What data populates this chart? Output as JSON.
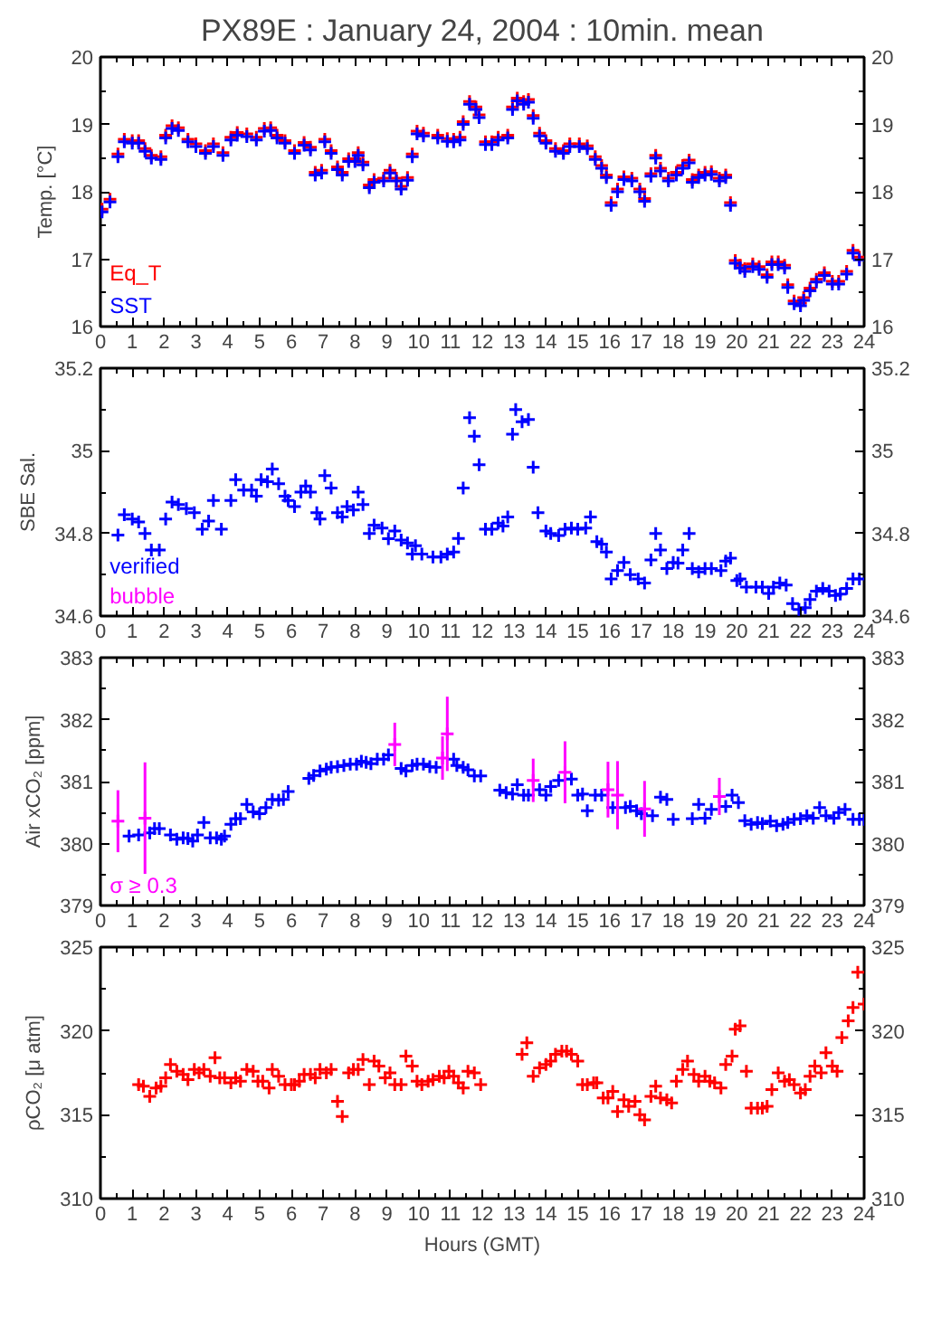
{
  "chart_data": [
    {
      "type": "scatter",
      "title": "PX89E : January 24, 2004 : 10min. mean",
      "ylabel": "Temp. [°C]",
      "marker": "cross",
      "legend": "bottom left",
      "xlim": [
        0,
        24
      ],
      "xticks": [
        0,
        1,
        2,
        3,
        4,
        5,
        6,
        7,
        8,
        9,
        10,
        11,
        12,
        13,
        14,
        15,
        16,
        17,
        18,
        19,
        20,
        21,
        22,
        23,
        24
      ],
      "ylim": [
        16,
        20
      ],
      "yticks": [
        16,
        17,
        18,
        19,
        20
      ],
      "y2lim": [
        16,
        20
      ],
      "y2ticks": [
        16,
        17,
        18,
        19,
        20
      ],
      "x": [
        0.05,
        0.3,
        0.55,
        0.75,
        1.0,
        1.2,
        1.4,
        1.6,
        1.9,
        2.05,
        2.25,
        2.45,
        2.75,
        3.0,
        3.3,
        3.55,
        3.85,
        4.1,
        4.3,
        4.6,
        4.9,
        5.15,
        5.35,
        5.55,
        5.8,
        6.1,
        6.4,
        6.6,
        6.75,
        6.95,
        7.05,
        7.25,
        7.45,
        7.6,
        7.8,
        8.0,
        8.1,
        8.25,
        8.45,
        8.6,
        8.9,
        9.1,
        9.3,
        9.45,
        9.65,
        9.8,
        9.95,
        10.15,
        10.6,
        10.9,
        11.1,
        11.3,
        11.4,
        11.6,
        11.8,
        11.9,
        12.1,
        12.3,
        12.5,
        12.8,
        12.95,
        13.1,
        13.3,
        13.45,
        13.6,
        13.8,
        14.0,
        14.3,
        14.55,
        14.75,
        15.05,
        15.3,
        15.55,
        15.75,
        15.9,
        16.05,
        16.25,
        16.45,
        16.7,
        16.95,
        17.1,
        17.3,
        17.45,
        17.6,
        17.85,
        18.1,
        18.3,
        18.5,
        18.6,
        18.8,
        19.0,
        19.2,
        19.45,
        19.65,
        19.8,
        19.95,
        20.1,
        20.25,
        20.5,
        20.7,
        20.95,
        21.1,
        21.3,
        21.5,
        21.6,
        21.8,
        22.0,
        22.1,
        22.3,
        22.5,
        22.75,
        23.0,
        23.2,
        23.45,
        23.65,
        23.85
      ],
      "series": [
        {
          "name": "Eq_T",
          "color": "#ff0000",
          "values": [
            17.74,
            17.89,
            18.56,
            18.78,
            18.76,
            18.76,
            18.64,
            18.54,
            18.52,
            18.84,
            18.98,
            18.95,
            18.78,
            18.71,
            18.61,
            18.71,
            18.58,
            18.81,
            18.88,
            18.86,
            18.81,
            18.94,
            18.95,
            18.84,
            18.76,
            18.61,
            18.73,
            18.66,
            18.29,
            18.32,
            18.78,
            18.61,
            18.37,
            18.29,
            18.49,
            18.49,
            18.58,
            18.44,
            18.1,
            18.18,
            18.2,
            18.32,
            18.2,
            18.08,
            18.21,
            18.56,
            18.9,
            18.87,
            18.84,
            18.79,
            18.78,
            18.81,
            19.04,
            19.34,
            19.26,
            19.14,
            18.74,
            18.74,
            18.81,
            18.84,
            19.26,
            19.39,
            19.34,
            19.37,
            19.13,
            18.87,
            18.76,
            18.64,
            18.61,
            18.71,
            18.71,
            18.68,
            18.52,
            18.39,
            18.25,
            17.84,
            18.04,
            18.22,
            18.2,
            18.04,
            17.9,
            18.27,
            18.54,
            18.35,
            18.2,
            18.29,
            18.39,
            18.47,
            18.18,
            18.25,
            18.29,
            18.3,
            18.2,
            18.25,
            17.84,
            16.98,
            16.91,
            16.86,
            16.93,
            16.89,
            16.77,
            16.96,
            16.96,
            16.91,
            16.62,
            16.38,
            16.35,
            16.43,
            16.57,
            16.7,
            16.8,
            16.67,
            16.67,
            16.82,
            17.13,
            17.03
          ]
        },
        {
          "name": "SST",
          "color": "#0000ff",
          "values": [
            17.7,
            17.85,
            18.52,
            18.74,
            18.72,
            18.72,
            18.6,
            18.5,
            18.48,
            18.8,
            18.94,
            18.91,
            18.74,
            18.67,
            18.57,
            18.67,
            18.54,
            18.77,
            18.84,
            18.82,
            18.77,
            18.9,
            18.91,
            18.8,
            18.72,
            18.57,
            18.69,
            18.62,
            18.25,
            18.28,
            18.74,
            18.57,
            18.33,
            18.25,
            18.45,
            18.45,
            18.54,
            18.4,
            18.06,
            18.14,
            18.16,
            18.28,
            18.16,
            18.04,
            18.17,
            18.52,
            18.86,
            18.83,
            18.8,
            18.75,
            18.74,
            18.77,
            19.0,
            19.3,
            19.22,
            19.1,
            18.7,
            18.7,
            18.77,
            18.8,
            19.22,
            19.35,
            19.3,
            19.33,
            19.09,
            18.83,
            18.72,
            18.6,
            18.57,
            18.67,
            18.67,
            18.64,
            18.48,
            18.35,
            18.21,
            17.8,
            18.0,
            18.18,
            18.16,
            18.0,
            17.86,
            18.23,
            18.5,
            18.31,
            18.16,
            18.25,
            18.35,
            18.43,
            18.14,
            18.21,
            18.25,
            18.26,
            18.16,
            18.21,
            17.8,
            16.94,
            16.87,
            16.82,
            16.89,
            16.85,
            16.73,
            16.92,
            16.92,
            16.87,
            16.58,
            16.34,
            16.31,
            16.39,
            16.53,
            16.66,
            16.76,
            16.63,
            16.63,
            16.78,
            17.09,
            16.99
          ]
        }
      ]
    },
    {
      "type": "scatter",
      "ylabel": "SBE Sal.",
      "marker": "cross",
      "legend": "bottom left",
      "xlim": [
        0,
        24
      ],
      "xticks": [
        0,
        1,
        2,
        3,
        4,
        5,
        6,
        7,
        8,
        9,
        10,
        11,
        12,
        13,
        14,
        15,
        16,
        17,
        18,
        19,
        20,
        21,
        22,
        23,
        24
      ],
      "ylim": [
        34.6,
        35.2
      ],
      "yticks": [
        34.6,
        34.8,
        35,
        35.2
      ],
      "y2lim": [
        34.6,
        35.2
      ],
      "y2ticks": [
        34.6,
        34.8,
        35,
        35.2
      ],
      "series": [
        {
          "name": "verified",
          "color": "#0000ff",
          "x": [
            0.55,
            0.75,
            1.0,
            1.2,
            1.4,
            1.6,
            1.85,
            2.05,
            2.25,
            2.45,
            2.7,
            2.95,
            3.2,
            3.4,
            3.55,
            3.8,
            4.1,
            4.25,
            4.5,
            4.75,
            4.9,
            5.05,
            5.25,
            5.4,
            5.6,
            5.8,
            5.9,
            6.1,
            6.3,
            6.45,
            6.6,
            6.8,
            6.9,
            7.05,
            7.25,
            7.45,
            7.6,
            7.75,
            7.95,
            8.1,
            8.25,
            8.45,
            8.6,
            8.85,
            9.05,
            9.25,
            9.45,
            9.65,
            9.8,
            9.9,
            10.1,
            10.45,
            10.7,
            10.9,
            11.1,
            11.25,
            11.4,
            11.6,
            11.75,
            11.9,
            12.1,
            12.3,
            12.5,
            12.65,
            12.8,
            12.95,
            13.05,
            13.25,
            13.45,
            13.6,
            13.75,
            14.0,
            14.15,
            14.4,
            14.6,
            14.8,
            15.0,
            15.25,
            15.4,
            15.6,
            15.75,
            15.9,
            16.05,
            16.25,
            16.45,
            16.65,
            16.9,
            17.1,
            17.3,
            17.45,
            17.6,
            17.8,
            18.0,
            18.15,
            18.3,
            18.5,
            18.6,
            18.8,
            19.0,
            19.2,
            19.5,
            19.65,
            19.8,
            20.0,
            20.1,
            20.3,
            20.6,
            20.8,
            21.0,
            21.15,
            21.35,
            21.55,
            21.75,
            21.95,
            22.15,
            22.3,
            22.5,
            22.7,
            22.9,
            23.1,
            23.25,
            23.45,
            23.65,
            23.85
          ],
          "values": [
            34.796,
            34.845,
            34.835,
            34.828,
            34.8,
            34.76,
            34.76,
            34.835,
            34.876,
            34.87,
            34.86,
            34.85,
            34.81,
            34.83,
            34.88,
            34.81,
            34.88,
            34.93,
            34.905,
            34.905,
            34.89,
            34.93,
            34.925,
            34.956,
            34.92,
            34.89,
            34.88,
            34.865,
            34.9,
            34.915,
            34.9,
            34.85,
            34.835,
            34.94,
            34.91,
            34.85,
            34.84,
            34.865,
            34.857,
            34.9,
            34.87,
            34.8,
            34.82,
            34.813,
            34.787,
            34.806,
            34.784,
            34.777,
            34.75,
            34.77,
            34.75,
            34.743,
            34.743,
            34.75,
            34.755,
            34.788,
            34.91,
            35.08,
            35.035,
            34.966,
            34.81,
            34.81,
            34.825,
            34.818,
            34.84,
            35.04,
            35.1,
            35.07,
            35.076,
            34.96,
            34.85,
            34.806,
            34.8,
            34.795,
            34.81,
            34.813,
            34.81,
            34.813,
            34.84,
            34.78,
            34.774,
            34.755,
            34.69,
            34.71,
            34.73,
            34.7,
            34.69,
            34.68,
            34.736,
            34.8,
            34.76,
            34.715,
            34.73,
            34.728,
            34.76,
            34.8,
            34.715,
            34.707,
            34.715,
            34.715,
            34.71,
            34.733,
            34.74,
            34.686,
            34.69,
            34.67,
            34.67,
            34.67,
            34.655,
            34.67,
            34.68,
            34.675,
            34.63,
            34.616,
            34.62,
            34.64,
            34.66,
            34.667,
            34.66,
            34.65,
            34.653,
            34.667,
            34.69,
            34.69
          ]
        },
        {
          "name": "bubble",
          "color": "#ff00ff"
        }
      ]
    },
    {
      "type": "scatter",
      "ylabel": "Air xCO₂ [ppm]",
      "marker": "cross",
      "legend": "bottom left",
      "xlim": [
        0,
        24
      ],
      "xticks": [
        0,
        1,
        2,
        3,
        4,
        5,
        6,
        7,
        8,
        9,
        10,
        11,
        12,
        13,
        14,
        15,
        16,
        17,
        18,
        19,
        20,
        21,
        22,
        23,
        24
      ],
      "ylim": [
        379,
        383
      ],
      "yticks": [
        379,
        380,
        381,
        382,
        383
      ],
      "y2lim": [
        379,
        383
      ],
      "y2ticks": [
        379,
        380,
        381,
        382,
        383
      ],
      "series": [
        {
          "color": "#0000ff",
          "x": [
            0.9,
            1.2,
            1.55,
            1.7,
            1.85,
            2.2,
            2.4,
            2.6,
            2.75,
            2.9,
            3.05,
            3.25,
            3.45,
            3.65,
            3.8,
            3.9,
            4.1,
            4.25,
            4.4,
            4.6,
            4.8,
            5.0,
            5.2,
            5.4,
            5.6,
            5.75,
            5.9,
            6.55,
            6.7,
            6.9,
            7.1,
            7.25,
            7.45,
            7.65,
            7.85,
            8.05,
            8.2,
            8.35,
            8.5,
            8.7,
            8.9,
            9.05,
            9.45,
            9.6,
            9.8,
            9.95,
            10.15,
            10.35,
            10.55,
            11.1,
            11.2,
            11.4,
            11.55,
            11.75,
            11.95,
            12.55,
            12.75,
            12.95,
            13.1,
            13.3,
            13.45,
            13.8,
            14.0,
            14.15,
            14.4,
            14.8,
            15.0,
            15.15,
            15.3,
            15.55,
            15.75,
            16.1,
            16.5,
            16.65,
            16.85,
            17.0,
            17.35,
            17.6,
            17.8,
            18.0,
            18.6,
            18.8,
            19.0,
            19.2,
            19.65,
            19.85,
            20.05,
            20.25,
            20.45,
            20.65,
            20.8,
            21.05,
            21.25,
            21.45,
            21.6,
            21.8,
            22.0,
            22.2,
            22.4,
            22.6,
            22.8,
            23.05,
            23.2,
            23.4,
            23.65,
            23.85,
            24.0
          ],
          "values": [
            380.12,
            380.14,
            380.17,
            380.24,
            380.24,
            380.14,
            380.07,
            380.09,
            380.08,
            380.04,
            380.14,
            380.34,
            380.09,
            380.09,
            380.07,
            380.12,
            380.31,
            380.4,
            380.4,
            380.63,
            380.51,
            380.48,
            380.58,
            380.71,
            380.7,
            380.71,
            380.84,
            381.05,
            381.1,
            381.17,
            381.2,
            381.23,
            381.24,
            381.26,
            381.28,
            381.28,
            381.33,
            381.31,
            381.29,
            381.36,
            381.36,
            381.43,
            381.21,
            381.17,
            381.26,
            381.28,
            381.28,
            381.24,
            381.23,
            381.36,
            381.26,
            381.23,
            381.19,
            381.09,
            381.09,
            380.86,
            380.82,
            380.8,
            380.95,
            380.78,
            380.78,
            380.87,
            380.78,
            380.92,
            381.02,
            381.04,
            380.78,
            380.8,
            380.53,
            380.78,
            380.78,
            380.58,
            380.58,
            380.6,
            380.53,
            380.48,
            380.45,
            380.75,
            380.71,
            380.39,
            380.4,
            380.63,
            380.41,
            380.55,
            380.6,
            380.78,
            380.66,
            380.37,
            380.31,
            380.34,
            380.32,
            380.36,
            380.29,
            380.31,
            380.34,
            380.39,
            380.4,
            380.45,
            380.41,
            380.58,
            380.45,
            380.41,
            380.5,
            380.55,
            380.39,
            380.39,
            380.39
          ]
        },
        {
          "name": "σ ≥ 0.3",
          "color": "#ff00ff",
          "x": [
            0.55,
            1.4,
            9.25,
            10.75,
            10.9,
            13.6,
            14.6,
            15.95,
            16.25,
            17.1,
            19.45
          ],
          "values": [
            380.36,
            380.41,
            381.6,
            381.38,
            381.77,
            381.02,
            381.15,
            380.87,
            380.78,
            380.56,
            380.76
          ],
          "errors": [
            0.5,
            0.9,
            0.35,
            0.35,
            0.6,
            0.35,
            0.5,
            0.45,
            0.55,
            0.45,
            0.3
          ]
        }
      ]
    },
    {
      "type": "scatter",
      "ylabel": "ρCO₂ [μ atm]",
      "xlabel": "Hours (GMT)",
      "marker": "cross",
      "xlim": [
        0,
        24
      ],
      "xticks": [
        0,
        1,
        2,
        3,
        4,
        5,
        6,
        7,
        8,
        9,
        10,
        11,
        12,
        13,
        14,
        15,
        16,
        17,
        18,
        19,
        20,
        21,
        22,
        23,
        24
      ],
      "ylim": [
        310,
        325
      ],
      "yticks": [
        310,
        315,
        320,
        325
      ],
      "y2lim": [
        310,
        325
      ],
      "y2ticks": [
        310,
        315,
        320,
        325
      ],
      "series": [
        {
          "color": "#ff0000",
          "x": [
            1.2,
            1.35,
            1.55,
            1.75,
            1.9,
            2.05,
            2.2,
            2.4,
            2.6,
            2.75,
            2.95,
            3.1,
            3.25,
            3.45,
            3.6,
            3.75,
            3.9,
            4.1,
            4.25,
            4.4,
            4.6,
            4.8,
            4.95,
            5.1,
            5.3,
            5.4,
            5.6,
            5.8,
            6.0,
            6.1,
            6.25,
            6.4,
            6.6,
            6.75,
            6.9,
            7.1,
            7.25,
            7.45,
            7.6,
            7.8,
            7.95,
            8.1,
            8.25,
            8.45,
            8.6,
            8.75,
            8.95,
            9.1,
            9.25,
            9.45,
            9.6,
            9.8,
            9.95,
            10.1,
            10.3,
            10.45,
            10.65,
            10.8,
            10.95,
            11.1,
            11.25,
            11.4,
            11.55,
            11.75,
            11.95,
            13.25,
            13.4,
            13.6,
            13.8,
            14.0,
            14.15,
            14.3,
            14.5,
            14.65,
            14.8,
            15.0,
            15.15,
            15.3,
            15.5,
            15.6,
            15.8,
            15.95,
            16.1,
            16.25,
            16.45,
            16.6,
            16.8,
            16.95,
            17.1,
            17.3,
            17.45,
            17.6,
            17.8,
            17.95,
            18.1,
            18.3,
            18.45,
            18.65,
            18.8,
            19.0,
            19.15,
            19.3,
            19.5,
            19.65,
            19.85,
            19.95,
            20.1,
            20.3,
            20.45,
            20.65,
            20.8,
            20.95,
            21.1,
            21.3,
            21.5,
            21.65,
            21.8,
            22.0,
            22.15,
            22.3,
            22.45,
            22.65,
            22.8,
            23.0,
            23.15,
            23.3,
            23.5,
            23.65,
            23.8,
            24.0
          ],
          "values": [
            316.8,
            316.7,
            316.1,
            316.6,
            316.7,
            317.2,
            318.0,
            317.6,
            317.4,
            317.1,
            317.7,
            317.5,
            317.7,
            317.3,
            318.4,
            317.2,
            317.2,
            316.9,
            317.2,
            317.0,
            317.7,
            317.6,
            317.0,
            317.0,
            316.6,
            317.7,
            317.3,
            316.8,
            316.8,
            316.8,
            317.0,
            317.4,
            317.4,
            317.2,
            317.7,
            317.5,
            317.7,
            315.8,
            314.9,
            317.5,
            317.7,
            317.7,
            318.3,
            316.8,
            318.2,
            317.9,
            317.2,
            317.5,
            316.8,
            316.8,
            318.5,
            317.9,
            317.0,
            316.8,
            317.0,
            317.1,
            317.3,
            317.2,
            317.6,
            317.3,
            316.9,
            316.6,
            317.6,
            317.5,
            316.8,
            318.6,
            319.3,
            317.3,
            317.8,
            318.0,
            318.2,
            318.6,
            318.8,
            318.8,
            318.6,
            318.2,
            316.8,
            316.8,
            316.9,
            316.9,
            316.0,
            316.0,
            316.4,
            315.2,
            315.9,
            315.5,
            315.8,
            315.0,
            314.7,
            316.1,
            316.7,
            316.0,
            315.9,
            315.7,
            317.0,
            317.7,
            318.2,
            317.4,
            317.0,
            317.3,
            317.0,
            316.9,
            316.6,
            318.0,
            318.5,
            320.1,
            320.3,
            317.6,
            315.4,
            315.4,
            315.4,
            315.5,
            316.5,
            317.5,
            317.0,
            317.1,
            316.8,
            316.3,
            316.5,
            317.3,
            317.9,
            317.5,
            318.7,
            317.9,
            317.6,
            319.6,
            320.6,
            321.4,
            323.5,
            321.6
          ]
        }
      ]
    }
  ]
}
